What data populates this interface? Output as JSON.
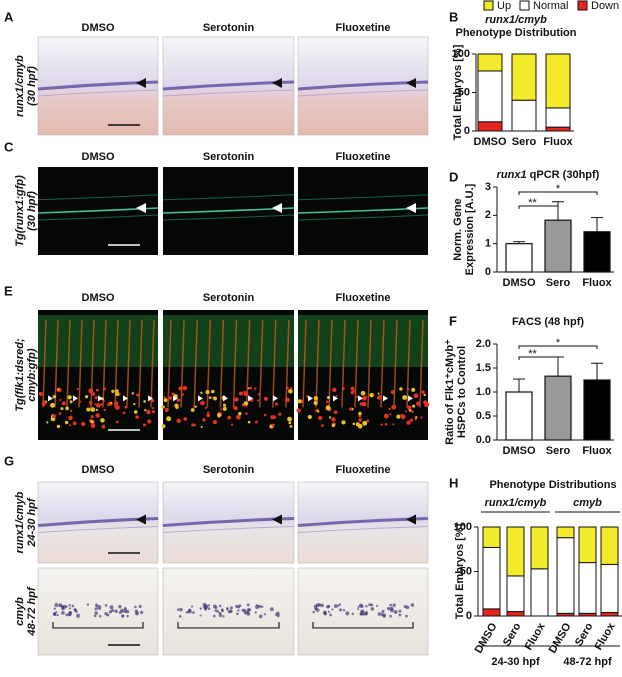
{
  "figure": {
    "image_rows": [
      {
        "letter": "A",
        "columns": [
          "DMSO",
          "Serotonin",
          "Fluoxetine"
        ],
        "row_labels": [
          [
            "runx1/cmyb",
            "(30 hpf)"
          ]
        ]
      },
      {
        "letter": "C",
        "columns": [
          "DMSO",
          "Serotonin",
          "Fluoxetine"
        ],
        "row_labels": [
          [
            "Tg(runx1:gfp)",
            "(30 hpf)"
          ]
        ]
      },
      {
        "letter": "E",
        "columns": [
          "DMSO",
          "Serotonin",
          "Fluoxetine"
        ],
        "row_labels": [
          [
            "Tg(flk1:dsred;",
            "cmyb:gfp)"
          ]
        ]
      },
      {
        "letter": "G",
        "columns": [
          "DMSO",
          "Serotonin",
          "Fluoxetine"
        ],
        "row_labels": [
          [
            "runx1/cmyb",
            "24-30 hpf"
          ],
          [
            "cmyb",
            "48-72 hpf"
          ]
        ]
      }
    ]
  },
  "chart_data": [
    {
      "letter": "B",
      "type": "stacked_bar",
      "title": "runx1/cmyb",
      "subtitle": "Phenotype Distribution",
      "y_label": [
        "Total Embryos [%]"
      ],
      "categories": [
        "DMSO",
        "Sero",
        "Fluox"
      ],
      "series": [
        {
          "name": "Down",
          "color": "#e3241f",
          "values": [
            12,
            0,
            5
          ]
        },
        {
          "name": "Normal",
          "color": "#ffffff",
          "values": [
            66,
            40,
            25
          ]
        },
        {
          "name": "Up",
          "color": "#f3ea2b",
          "values": [
            22,
            60,
            70
          ]
        }
      ],
      "ylim": [
        0,
        100
      ],
      "yticks": [
        0,
        50,
        100
      ]
    },
    {
      "letter": "D",
      "type": "bar",
      "title_italic": "runx1",
      "title": "qPCR (30hpf)",
      "y_label": [
        "Norm. Gene",
        "Expression [A.U.]"
      ],
      "categories": [
        "DMSO",
        "Sero",
        "Fluox"
      ],
      "values": [
        1.0,
        1.83,
        1.42
      ],
      "errors": [
        0.07,
        0.65,
        0.5
      ],
      "colors": [
        "#ffffff",
        "#999999",
        "#000000"
      ],
      "ylim": [
        0,
        3
      ],
      "yticks": [
        0,
        1,
        2,
        3
      ],
      "annotations": [
        {
          "label": "**",
          "from": 0,
          "to": 1
        },
        {
          "label": "*",
          "from": 0,
          "to": 2
        }
      ]
    },
    {
      "letter": "F",
      "type": "bar",
      "title": "FACS (48 hpf)",
      "y_label": [
        "Ratio of Flk1⁺cMyb⁺",
        "HSPCs to Control"
      ],
      "categories": [
        "DMSO",
        "Sero",
        "Fluox"
      ],
      "values": [
        1.0,
        1.33,
        1.25
      ],
      "errors": [
        0.27,
        0.4,
        0.35
      ],
      "colors": [
        "#ffffff",
        "#999999",
        "#000000"
      ],
      "ylim": [
        0,
        2
      ],
      "yticks": [
        {
          "value": 0,
          "label": "0.0"
        },
        {
          "value": 0.5,
          "label": "0.5"
        },
        {
          "value": 1,
          "label": "1.0"
        },
        {
          "value": 1.5,
          "label": "1.5"
        },
        {
          "value": 2,
          "label": "2.0"
        }
      ],
      "annotations": [
        {
          "label": "**",
          "from": 0,
          "to": 1
        },
        {
          "label": "*",
          "from": 0,
          "to": 2
        }
      ]
    },
    {
      "letter": "H",
      "type": "stacked_bar",
      "title": "Phenotype Distributions",
      "y_label": [
        "Total Embryos [%]"
      ],
      "categories": [
        "DMSO",
        "Sero",
        "Fluox",
        "DMSO",
        "Sero",
        "Fluox"
      ],
      "groups": [
        {
          "label": "runx1/cmyb",
          "time": "24-30 hpf"
        },
        {
          "label": "cmyb",
          "time": "48-72 hpf"
        }
      ],
      "series": [
        {
          "color": "#e3241f",
          "values": [
            8,
            5,
            0,
            3,
            3,
            4
          ]
        },
        {
          "color": "#ffffff",
          "values": [
            69,
            40,
            53,
            85,
            57,
            54
          ]
        },
        {
          "color": "#f3ea2b",
          "values": [
            23,
            55,
            47,
            12,
            40,
            42
          ]
        }
      ],
      "ylim": [
        0,
        100
      ],
      "yticks": [
        0,
        50,
        100
      ]
    }
  ]
}
